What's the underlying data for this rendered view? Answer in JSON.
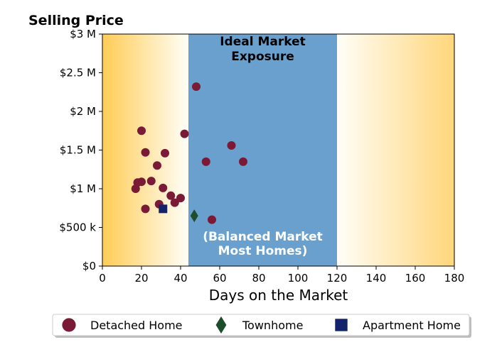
{
  "chart_data": {
    "type": "scatter",
    "title": "",
    "ylabel": "Selling Price",
    "xlabel": "Days on the Market",
    "xlim": [
      0,
      180
    ],
    "ylim": [
      0,
      3000000
    ],
    "x_ticks": [
      0,
      20,
      40,
      60,
      80,
      100,
      120,
      140,
      160,
      180
    ],
    "x_tick_labels": [
      "0",
      "20",
      "40",
      "60",
      "80",
      "100",
      "120",
      "140",
      "160",
      "180"
    ],
    "y_ticks": [
      0,
      500000,
      1000000,
      1500000,
      2000000,
      2500000,
      3000000
    ],
    "y_tick_labels": [
      "$0",
      "$500 k",
      "$1 M",
      "$1.5 M",
      "$2 M",
      "$2.5 M",
      "$3 M"
    ],
    "grid": false,
    "legend_position": "bottom",
    "ideal_band": {
      "x_range": [
        44,
        120
      ],
      "color": "#6aa0cd",
      "label_top": [
        "Ideal Market",
        "Exposure"
      ],
      "label_bottom": [
        "(Balanced Market",
        "Most Homes)"
      ]
    },
    "background_gradient_colors": [
      "#ffcc55",
      "#fffef8"
    ],
    "series": [
      {
        "name": "Detached Home",
        "marker": "circle",
        "color": "#7a1a36",
        "points": [
          {
            "x": 17,
            "y": 1000000
          },
          {
            "x": 18,
            "y": 1080000
          },
          {
            "x": 20,
            "y": 1750000
          },
          {
            "x": 20,
            "y": 1090000
          },
          {
            "x": 22,
            "y": 1470000
          },
          {
            "x": 22,
            "y": 740000
          },
          {
            "x": 25,
            "y": 1100000
          },
          {
            "x": 28,
            "y": 1300000
          },
          {
            "x": 29,
            "y": 800000
          },
          {
            "x": 31,
            "y": 1010000
          },
          {
            "x": 32,
            "y": 1460000
          },
          {
            "x": 35,
            "y": 910000
          },
          {
            "x": 37,
            "y": 820000
          },
          {
            "x": 40,
            "y": 880000
          },
          {
            "x": 42,
            "y": 1710000
          },
          {
            "x": 48,
            "y": 2320000
          },
          {
            "x": 53,
            "y": 1350000
          },
          {
            "x": 56,
            "y": 600000
          },
          {
            "x": 66,
            "y": 1560000
          },
          {
            "x": 72,
            "y": 1350000
          }
        ]
      },
      {
        "name": "Townhome",
        "marker": "diamond",
        "color": "#1e4d2b",
        "points": [
          {
            "x": 47,
            "y": 650000
          }
        ]
      },
      {
        "name": "Apartment Home",
        "marker": "square",
        "color": "#13236b",
        "points": [
          {
            "x": 31,
            "y": 740000
          }
        ]
      }
    ]
  }
}
